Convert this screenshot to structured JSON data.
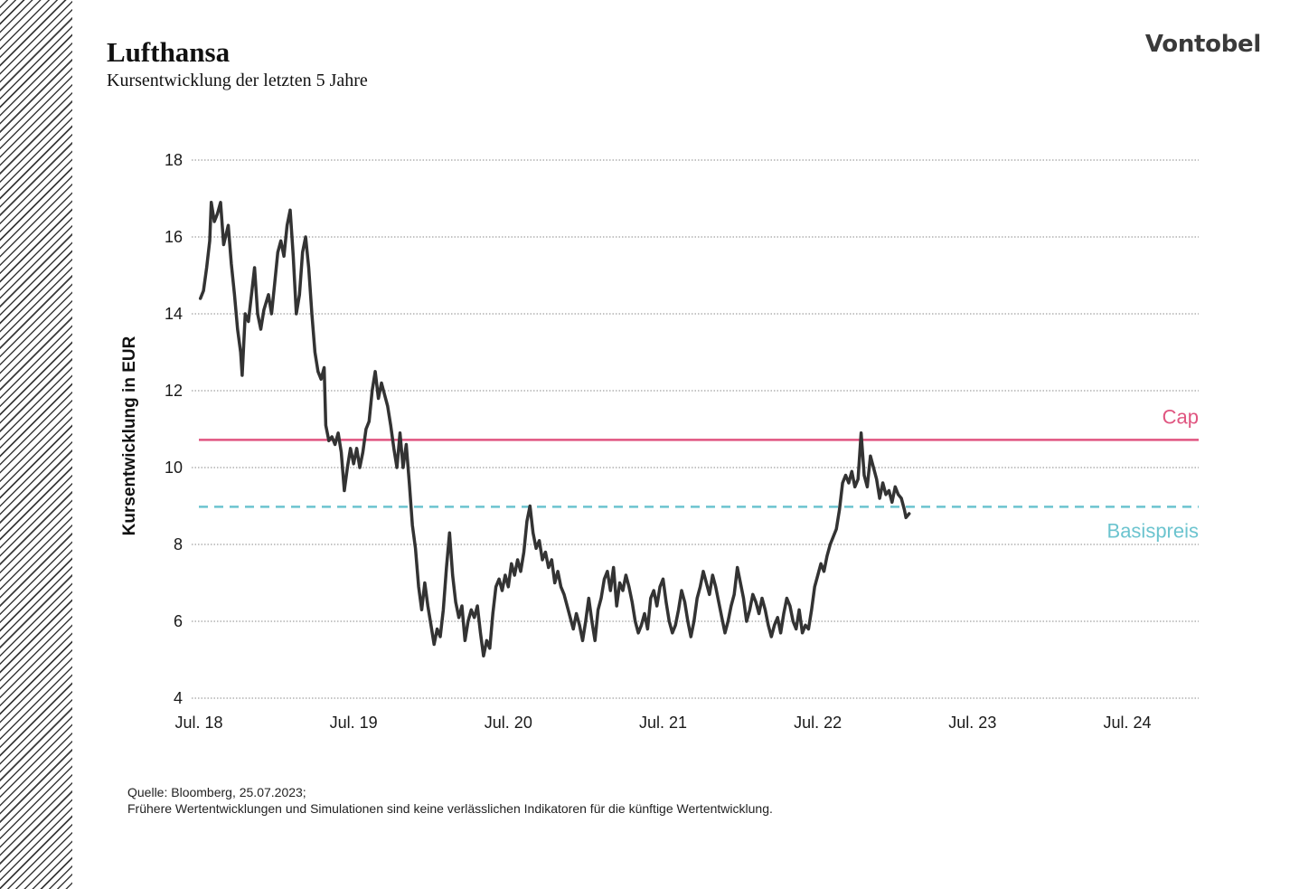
{
  "header": {
    "title": "Lufthansa",
    "subtitle": "Kursentwicklung der letzten 5 Jahre",
    "brand": "Vontobel"
  },
  "footer": {
    "source": "Quelle: Bloomberg, 25.07.2023;",
    "disclaimer": "Frühere Wertentwicklungen und Simulationen sind keine verlässlichen Indikatoren für die künftige Wertentwicklung."
  },
  "colors": {
    "line": "#333333",
    "cap": "#e05580",
    "basis": "#6cc4cf",
    "grid": "#8a8a8a"
  },
  "chart_data": {
    "type": "line",
    "title": "Lufthansa",
    "xlabel": "",
    "ylabel": "Kursentwicklung in EUR",
    "ylim": [
      4,
      18
    ],
    "xlim": [
      2018.55,
      2024.8
    ],
    "yticks": [
      4,
      6,
      8,
      10,
      12,
      14,
      16,
      18
    ],
    "xticks": [
      {
        "label": "Jul. 18",
        "value": 2018.55
      },
      {
        "label": "Jul. 19",
        "value": 2019.55
      },
      {
        "label": "Jul. 20",
        "value": 2020.55
      },
      {
        "label": "Jul. 21",
        "value": 2021.55
      },
      {
        "label": "Jul. 22",
        "value": 2022.55
      },
      {
        "label": "Jul. 23",
        "value": 2023.55
      },
      {
        "label": "Jul. 24",
        "value": 2024.55
      }
    ],
    "grid": true,
    "reference_lines": [
      {
        "name": "Cap",
        "value": 10.72,
        "style": "solid"
      },
      {
        "name": "Basispreis",
        "value": 8.98,
        "style": "dashed"
      }
    ],
    "series": [
      {
        "name": "Lufthansa",
        "points": [
          [
            2018.56,
            14.4
          ],
          [
            2018.58,
            14.6
          ],
          [
            2018.6,
            15.2
          ],
          [
            2018.62,
            15.9
          ],
          [
            2018.63,
            16.9
          ],
          [
            2018.65,
            16.4
          ],
          [
            2018.67,
            16.6
          ],
          [
            2018.69,
            16.9
          ],
          [
            2018.71,
            15.8
          ],
          [
            2018.74,
            16.3
          ],
          [
            2018.76,
            15.3
          ],
          [
            2018.78,
            14.5
          ],
          [
            2018.8,
            13.6
          ],
          [
            2018.82,
            13.0
          ],
          [
            2018.83,
            12.4
          ],
          [
            2018.85,
            14.0
          ],
          [
            2018.87,
            13.8
          ],
          [
            2018.89,
            14.5
          ],
          [
            2018.91,
            15.2
          ],
          [
            2018.93,
            14.0
          ],
          [
            2018.95,
            13.6
          ],
          [
            2018.97,
            14.1
          ],
          [
            2019.0,
            14.5
          ],
          [
            2019.02,
            14.0
          ],
          [
            2019.04,
            14.8
          ],
          [
            2019.06,
            15.6
          ],
          [
            2019.08,
            15.9
          ],
          [
            2019.1,
            15.5
          ],
          [
            2019.12,
            16.3
          ],
          [
            2019.14,
            16.7
          ],
          [
            2019.16,
            15.5
          ],
          [
            2019.18,
            14.0
          ],
          [
            2019.2,
            14.5
          ],
          [
            2019.22,
            15.6
          ],
          [
            2019.24,
            16.0
          ],
          [
            2019.26,
            15.2
          ],
          [
            2019.28,
            14.0
          ],
          [
            2019.3,
            13.0
          ],
          [
            2019.32,
            12.5
          ],
          [
            2019.34,
            12.3
          ],
          [
            2019.36,
            12.6
          ],
          [
            2019.37,
            11.1
          ],
          [
            2019.39,
            10.7
          ],
          [
            2019.41,
            10.8
          ],
          [
            2019.43,
            10.6
          ],
          [
            2019.45,
            10.9
          ],
          [
            2019.47,
            10.4
          ],
          [
            2019.49,
            9.4
          ],
          [
            2019.51,
            10.0
          ],
          [
            2019.53,
            10.5
          ],
          [
            2019.55,
            10.1
          ],
          [
            2019.57,
            10.5
          ],
          [
            2019.59,
            10.0
          ],
          [
            2019.61,
            10.4
          ],
          [
            2019.63,
            11.0
          ],
          [
            2019.65,
            11.2
          ],
          [
            2019.67,
            12.0
          ],
          [
            2019.69,
            12.5
          ],
          [
            2019.71,
            11.8
          ],
          [
            2019.73,
            12.2
          ],
          [
            2019.75,
            11.9
          ],
          [
            2019.77,
            11.6
          ],
          [
            2019.79,
            11.1
          ],
          [
            2019.81,
            10.5
          ],
          [
            2019.83,
            10.0
          ],
          [
            2019.85,
            10.9
          ],
          [
            2019.87,
            10.0
          ],
          [
            2019.89,
            10.6
          ],
          [
            2019.91,
            9.6
          ],
          [
            2019.93,
            8.5
          ],
          [
            2019.95,
            7.9
          ],
          [
            2019.97,
            6.9
          ],
          [
            2019.99,
            6.3
          ],
          [
            2020.01,
            7.0
          ],
          [
            2020.03,
            6.4
          ],
          [
            2020.05,
            5.9
          ],
          [
            2020.07,
            5.4
          ],
          [
            2020.09,
            5.8
          ],
          [
            2020.11,
            5.6
          ],
          [
            2020.13,
            6.3
          ],
          [
            2020.15,
            7.4
          ],
          [
            2020.17,
            8.3
          ],
          [
            2020.19,
            7.2
          ],
          [
            2020.21,
            6.5
          ],
          [
            2020.23,
            6.1
          ],
          [
            2020.25,
            6.4
          ],
          [
            2020.27,
            5.5
          ],
          [
            2020.29,
            6.0
          ],
          [
            2020.31,
            6.3
          ],
          [
            2020.33,
            6.1
          ],
          [
            2020.35,
            6.4
          ],
          [
            2020.37,
            5.7
          ],
          [
            2020.39,
            5.1
          ],
          [
            2020.41,
            5.5
          ],
          [
            2020.43,
            5.3
          ],
          [
            2020.45,
            6.2
          ],
          [
            2020.47,
            6.9
          ],
          [
            2020.49,
            7.1
          ],
          [
            2020.51,
            6.8
          ],
          [
            2020.53,
            7.2
          ],
          [
            2020.55,
            6.9
          ],
          [
            2020.57,
            7.5
          ],
          [
            2020.59,
            7.2
          ],
          [
            2020.61,
            7.6
          ],
          [
            2020.63,
            7.3
          ],
          [
            2020.65,
            7.8
          ],
          [
            2020.67,
            8.6
          ],
          [
            2020.69,
            9.0
          ],
          [
            2020.71,
            8.3
          ],
          [
            2020.73,
            7.9
          ],
          [
            2020.75,
            8.1
          ],
          [
            2020.77,
            7.6
          ],
          [
            2020.79,
            7.8
          ],
          [
            2020.81,
            7.4
          ],
          [
            2020.83,
            7.6
          ],
          [
            2020.85,
            7.0
          ],
          [
            2020.87,
            7.3
          ],
          [
            2020.89,
            6.9
          ],
          [
            2020.91,
            6.7
          ],
          [
            2020.93,
            6.4
          ],
          [
            2020.95,
            6.1
          ],
          [
            2020.97,
            5.8
          ],
          [
            2020.99,
            6.2
          ],
          [
            2021.01,
            5.9
          ],
          [
            2021.03,
            5.5
          ],
          [
            2021.05,
            6.0
          ],
          [
            2021.07,
            6.6
          ],
          [
            2021.09,
            6.0
          ],
          [
            2021.11,
            5.5
          ],
          [
            2021.13,
            6.3
          ],
          [
            2021.15,
            6.6
          ],
          [
            2021.17,
            7.1
          ],
          [
            2021.19,
            7.3
          ],
          [
            2021.21,
            6.8
          ],
          [
            2021.23,
            7.4
          ],
          [
            2021.25,
            6.4
          ],
          [
            2021.27,
            7.0
          ],
          [
            2021.29,
            6.8
          ],
          [
            2021.31,
            7.2
          ],
          [
            2021.33,
            6.9
          ],
          [
            2021.35,
            6.5
          ],
          [
            2021.37,
            6.0
          ],
          [
            2021.39,
            5.7
          ],
          [
            2021.41,
            5.9
          ],
          [
            2021.43,
            6.2
          ],
          [
            2021.45,
            5.8
          ],
          [
            2021.47,
            6.6
          ],
          [
            2021.49,
            6.8
          ],
          [
            2021.51,
            6.4
          ],
          [
            2021.53,
            6.9
          ],
          [
            2021.55,
            7.1
          ],
          [
            2021.57,
            6.5
          ],
          [
            2021.59,
            6.0
          ],
          [
            2021.61,
            5.7
          ],
          [
            2021.63,
            5.9
          ],
          [
            2021.65,
            6.3
          ],
          [
            2021.67,
            6.8
          ],
          [
            2021.69,
            6.5
          ],
          [
            2021.71,
            6.0
          ],
          [
            2021.73,
            5.6
          ],
          [
            2021.75,
            6.0
          ],
          [
            2021.77,
            6.6
          ],
          [
            2021.79,
            6.9
          ],
          [
            2021.81,
            7.3
          ],
          [
            2021.83,
            7.0
          ],
          [
            2021.85,
            6.7
          ],
          [
            2021.87,
            7.2
          ],
          [
            2021.89,
            6.9
          ],
          [
            2021.91,
            6.5
          ],
          [
            2021.93,
            6.1
          ],
          [
            2021.95,
            5.7
          ],
          [
            2021.97,
            6.0
          ],
          [
            2021.99,
            6.4
          ],
          [
            2022.01,
            6.7
          ],
          [
            2022.03,
            7.4
          ],
          [
            2022.05,
            7.0
          ],
          [
            2022.07,
            6.6
          ],
          [
            2022.09,
            6.0
          ],
          [
            2022.11,
            6.3
          ],
          [
            2022.13,
            6.7
          ],
          [
            2022.15,
            6.5
          ],
          [
            2022.17,
            6.2
          ],
          [
            2022.19,
            6.6
          ],
          [
            2022.21,
            6.3
          ],
          [
            2022.23,
            5.9
          ],
          [
            2022.25,
            5.6
          ],
          [
            2022.27,
            5.9
          ],
          [
            2022.29,
            6.1
          ],
          [
            2022.31,
            5.7
          ],
          [
            2022.33,
            6.2
          ],
          [
            2022.35,
            6.6
          ],
          [
            2022.37,
            6.4
          ],
          [
            2022.39,
            6.0
          ],
          [
            2022.41,
            5.8
          ],
          [
            2022.43,
            6.3
          ],
          [
            2022.45,
            5.7
          ],
          [
            2022.47,
            5.9
          ],
          [
            2022.49,
            5.8
          ],
          [
            2022.51,
            6.3
          ],
          [
            2022.53,
            6.9
          ],
          [
            2022.55,
            7.2
          ],
          [
            2022.57,
            7.5
          ],
          [
            2022.59,
            7.3
          ],
          [
            2022.61,
            7.7
          ],
          [
            2022.63,
            8.0
          ],
          [
            2022.65,
            8.2
          ],
          [
            2022.67,
            8.4
          ],
          [
            2022.69,
            8.9
          ],
          [
            2022.71,
            9.6
          ],
          [
            2022.73,
            9.8
          ],
          [
            2022.75,
            9.6
          ],
          [
            2022.77,
            9.9
          ],
          [
            2022.79,
            9.5
          ],
          [
            2022.81,
            9.7
          ],
          [
            2022.83,
            10.9
          ],
          [
            2022.85,
            9.8
          ],
          [
            2022.87,
            9.5
          ],
          [
            2022.89,
            10.3
          ],
          [
            2022.91,
            10.0
          ],
          [
            2022.93,
            9.7
          ],
          [
            2022.95,
            9.2
          ],
          [
            2022.97,
            9.6
          ],
          [
            2022.99,
            9.3
          ],
          [
            2023.01,
            9.4
          ],
          [
            2023.03,
            9.1
          ],
          [
            2023.05,
            9.5
          ],
          [
            2023.07,
            9.3
          ],
          [
            2023.09,
            9.2
          ],
          [
            2023.11,
            8.9
          ],
          [
            2023.12,
            8.7
          ],
          [
            2023.14,
            8.8
          ]
        ]
      }
    ]
  }
}
